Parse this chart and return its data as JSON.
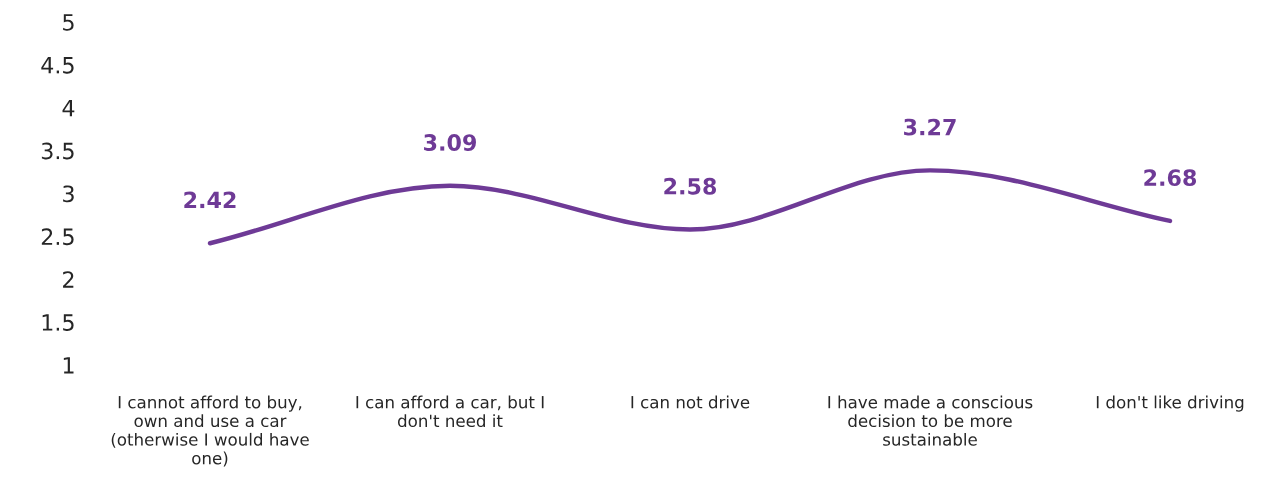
{
  "chart_data": {
    "type": "line",
    "categories": [
      "I cannot afford to buy,\nown and use a car\n(otherwise I would have\none)",
      "I can afford a car, but I\ndon't need it",
      "I can not drive",
      "I have made a conscious\ndecision to be more\nsustainable",
      "I don't like driving"
    ],
    "series": [
      {
        "color": "#6e3a96",
        "values": [
          2.42,
          3.09,
          2.58,
          3.27,
          2.68
        ]
      }
    ],
    "ylim": [
      1,
      5
    ],
    "yticks": [
      1,
      1.5,
      2,
      2.5,
      3,
      3.5,
      4,
      4.5,
      5
    ],
    "data_labels": true,
    "grid": false,
    "legend": false,
    "marker": "none",
    "line_style": "solid"
  }
}
